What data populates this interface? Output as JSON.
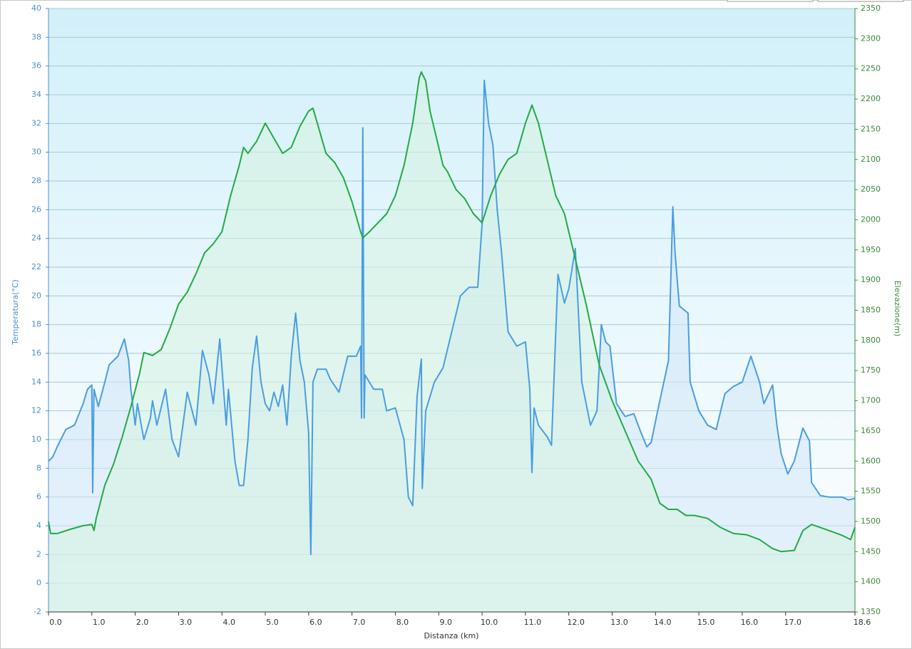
{
  "chart_data": {
    "type": "line",
    "x_label": "Distanza  (km)",
    "y_label": "Temperatura(°C)",
    "y2_label": "Elevazione(m)",
    "xlim": [
      0,
      18.6
    ],
    "xticks": [
      {
        "value": 0,
        "label": "0.0"
      },
      {
        "value": 1,
        "label": "1.0"
      },
      {
        "value": 2,
        "label": "2.0"
      },
      {
        "value": 3,
        "label": "3.0"
      },
      {
        "value": 4,
        "label": "4.0"
      },
      {
        "value": 5,
        "label": "5.0"
      },
      {
        "value": 6,
        "label": "6.0"
      },
      {
        "value": 7,
        "label": "7.0"
      },
      {
        "value": 8,
        "label": "8.0"
      },
      {
        "value": 9,
        "label": "9.0"
      },
      {
        "value": 10,
        "label": "10.0"
      },
      {
        "value": 11,
        "label": "11.0"
      },
      {
        "value": 12,
        "label": "12.0"
      },
      {
        "value": 13,
        "label": "13.0"
      },
      {
        "value": 14,
        "label": "14.0"
      },
      {
        "value": 15,
        "label": "15.0"
      },
      {
        "value": 16,
        "label": "16.0"
      },
      {
        "value": 17,
        "label": "17.0"
      },
      18.6
    ],
    "ylim": [
      -2,
      40
    ],
    "yticks": [
      -2,
      0,
      2,
      4,
      6,
      8,
      10,
      12,
      14,
      16,
      18,
      20,
      22,
      24,
      26,
      28,
      30,
      32,
      34,
      36,
      38,
      40
    ],
    "y2lim": [
      1350,
      2350
    ],
    "y2ticks": [
      1350,
      1400,
      1450,
      1500,
      1550,
      1600,
      1650,
      1700,
      1750,
      1800,
      1850,
      1900,
      1950,
      2000,
      2050,
      2100,
      2150,
      2200,
      2250,
      2300,
      2350
    ],
    "grid": true,
    "series": [
      {
        "color": "#4a9de0",
        "fill": "#cfe6f7",
        "axis": "y",
        "x": [
          0,
          0.1,
          0.2,
          0.4,
          0.6,
          0.8,
          0.9,
          1.0,
          1.02,
          1.05,
          1.15,
          1.3,
          1.4,
          1.6,
          1.75,
          1.85,
          1.9,
          2.0,
          2.05,
          2.2,
          2.35,
          2.4,
          2.5,
          2.7,
          2.85,
          3.0,
          3.1,
          3.2,
          3.4,
          3.55,
          3.7,
          3.8,
          3.95,
          4.1,
          4.15,
          4.3,
          4.4,
          4.5,
          4.6,
          4.7,
          4.8,
          4.9,
          5.0,
          5.1,
          5.2,
          5.3,
          5.4,
          5.5,
          5.6,
          5.7,
          5.8,
          5.9,
          6.0,
          6.05,
          6.1,
          6.2,
          6.4,
          6.5,
          6.7,
          6.9,
          7.1,
          7.2,
          7.22,
          7.25,
          7.28,
          7.3,
          7.5,
          7.7,
          7.8,
          8.0,
          8.2,
          8.3,
          8.4,
          8.5,
          8.6,
          8.62,
          8.7,
          8.9,
          9.1,
          9.3,
          9.5,
          9.7,
          9.9,
          10.0,
          10.05,
          10.15,
          10.25,
          10.35,
          10.45,
          10.6,
          10.8,
          11.0,
          11.1,
          11.15,
          11.2,
          11.3,
          11.5,
          11.6,
          11.75,
          11.9,
          12.0,
          12.15,
          12.3,
          12.5,
          12.65,
          12.75,
          12.85,
          12.95,
          13.1,
          13.3,
          13.5,
          13.65,
          13.8,
          13.9,
          14.05,
          14.3,
          14.4,
          14.45,
          14.55,
          14.75,
          14.8,
          15.0,
          15.2,
          15.4,
          15.6,
          15.8,
          16.0,
          16.2,
          16.4,
          16.5,
          16.7,
          16.8,
          16.9,
          17.05,
          17.2,
          17.4,
          17.55,
          17.6,
          17.8,
          18.0,
          18.3,
          18.45,
          18.6
        ],
        "values": [
          8.5,
          8.8,
          9.5,
          10.7,
          11,
          12.5,
          13.5,
          13.8,
          6.3,
          13.5,
          12.3,
          14,
          15.2,
          15.8,
          17,
          15.5,
          13.5,
          11,
          12.5,
          10,
          11.5,
          12.7,
          11,
          13.5,
          10,
          8.8,
          11,
          13.3,
          11,
          16.2,
          14.5,
          12.5,
          17,
          11,
          13.5,
          8.5,
          6.8,
          6.8,
          10,
          15,
          17.2,
          14,
          12.5,
          12,
          13.3,
          12.3,
          13.8,
          11,
          15.8,
          18.8,
          15.5,
          14,
          10.5,
          2,
          14,
          14.9,
          14.9,
          14.2,
          13.3,
          15.8,
          15.8,
          16.5,
          11.5,
          31.7,
          11.5,
          14.5,
          13.5,
          13.5,
          12,
          12.2,
          10,
          6,
          5.4,
          13,
          15.6,
          6.6,
          12,
          14,
          15,
          17.5,
          20,
          20.6,
          20.6,
          25,
          35,
          32,
          30.5,
          26,
          23,
          17.5,
          16.5,
          16.8,
          13.5,
          7.7,
          12.2,
          11,
          10.2,
          9.6,
          21.5,
          19.5,
          20.5,
          23.3,
          14,
          11,
          12,
          18,
          16.8,
          16.5,
          12.5,
          11.6,
          11.8,
          10.6,
          9.5,
          9.8,
          12,
          15.5,
          26.2,
          23,
          19.3,
          18.8,
          14,
          12,
          11,
          10.7,
          13.2,
          13.7,
          14,
          15.8,
          14,
          12.5,
          13.8,
          11,
          9,
          7.6,
          8.5,
          10.8,
          9.9,
          7,
          6.1,
          6,
          6,
          5.8,
          5.9
        ]
      },
      {
        "color": "#22aa44",
        "fill": "#d6f3e0",
        "axis": "y2",
        "x": [
          0,
          0.05,
          0.2,
          0.5,
          0.8,
          1.0,
          1.05,
          1.1,
          1.3,
          1.5,
          1.7,
          1.9,
          2.1,
          2.2,
          2.4,
          2.6,
          2.8,
          3.0,
          3.2,
          3.4,
          3.6,
          3.8,
          4.0,
          4.2,
          4.4,
          4.5,
          4.6,
          4.8,
          5.0,
          5.2,
          5.4,
          5.6,
          5.8,
          6.0,
          6.1,
          6.2,
          6.4,
          6.6,
          6.8,
          7.0,
          7.2,
          7.25,
          7.4,
          7.6,
          7.8,
          8.0,
          8.2,
          8.4,
          8.55,
          8.6,
          8.7,
          8.8,
          9.0,
          9.1,
          9.2,
          9.4,
          9.6,
          9.8,
          10.0,
          10.2,
          10.4,
          10.6,
          10.8,
          11.0,
          11.15,
          11.3,
          11.5,
          11.7,
          11.9,
          12.1,
          12.4,
          12.7,
          13.0,
          13.3,
          13.6,
          13.9,
          14.1,
          14.3,
          14.5,
          14.7,
          14.9,
          15.2,
          15.5,
          15.8,
          16.1,
          16.4,
          16.7,
          16.9,
          17.2,
          17.4,
          17.6,
          17.8,
          18.0,
          18.3,
          18.5,
          18.6
        ],
        "values": [
          1500,
          1480,
          1480,
          1487,
          1493,
          1495,
          1485,
          1505,
          1560,
          1595,
          1640,
          1690,
          1745,
          1780,
          1775,
          1785,
          1820,
          1860,
          1880,
          1910,
          1945,
          1960,
          1980,
          2040,
          2090,
          2120,
          2110,
          2130,
          2160,
          2135,
          2110,
          2120,
          2155,
          2180,
          2185,
          2160,
          2110,
          2095,
          2070,
          2030,
          1980,
          1970,
          1980,
          1995,
          2010,
          2040,
          2090,
          2160,
          2235,
          2245,
          2230,
          2180,
          2120,
          2090,
          2080,
          2050,
          2035,
          2010,
          1995,
          2040,
          2075,
          2100,
          2110,
          2160,
          2190,
          2160,
          2100,
          2040,
          2010,
          1950,
          1860,
          1760,
          1700,
          1650,
          1600,
          1570,
          1530,
          1520,
          1520,
          1510,
          1510,
          1505,
          1490,
          1480,
          1478,
          1470,
          1455,
          1450,
          1452,
          1485,
          1495,
          1490,
          1485,
          1477,
          1470,
          1490
        ]
      }
    ]
  }
}
